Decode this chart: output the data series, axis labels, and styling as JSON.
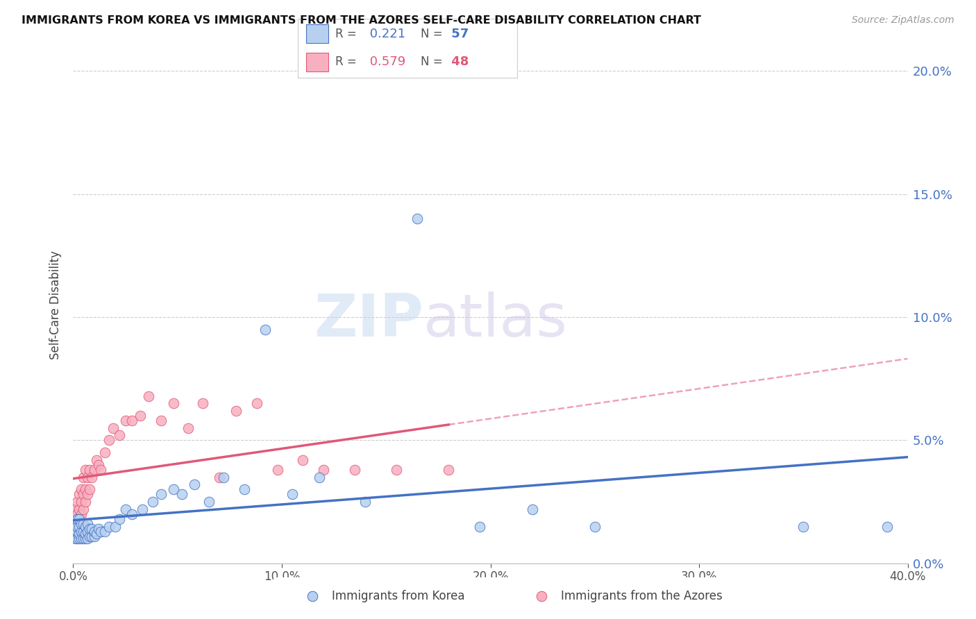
{
  "title": "IMMIGRANTS FROM KOREA VS IMMIGRANTS FROM THE AZORES SELF-CARE DISABILITY CORRELATION CHART",
  "source": "Source: ZipAtlas.com",
  "ylabel": "Self-Care Disability",
  "xlim": [
    0.0,
    0.4
  ],
  "ylim": [
    0.0,
    0.21
  ],
  "yticks": [
    0.0,
    0.05,
    0.1,
    0.15,
    0.2
  ],
  "xticks": [
    0.0,
    0.1,
    0.2,
    0.3,
    0.4
  ],
  "korea_R": 0.221,
  "korea_N": 57,
  "azores_R": 0.579,
  "azores_N": 48,
  "korea_color": "#b8d0f0",
  "azores_color": "#f8b0c0",
  "korea_edge_color": "#4472c4",
  "azores_edge_color": "#e05878",
  "korea_line_color": "#4472c4",
  "azores_line_color": "#e05878",
  "korea_x": [
    0.001,
    0.001,
    0.001,
    0.002,
    0.002,
    0.002,
    0.002,
    0.003,
    0.003,
    0.003,
    0.003,
    0.004,
    0.004,
    0.004,
    0.005,
    0.005,
    0.005,
    0.006,
    0.006,
    0.006,
    0.007,
    0.007,
    0.007,
    0.008,
    0.008,
    0.009,
    0.009,
    0.01,
    0.01,
    0.011,
    0.012,
    0.013,
    0.015,
    0.017,
    0.02,
    0.022,
    0.025,
    0.028,
    0.033,
    0.038,
    0.042,
    0.048,
    0.052,
    0.058,
    0.065,
    0.072,
    0.082,
    0.092,
    0.105,
    0.118,
    0.14,
    0.165,
    0.195,
    0.22,
    0.25,
    0.35,
    0.39
  ],
  "korea_y": [
    0.01,
    0.012,
    0.015,
    0.01,
    0.013,
    0.015,
    0.018,
    0.01,
    0.012,
    0.015,
    0.018,
    0.01,
    0.013,
    0.016,
    0.01,
    0.013,
    0.016,
    0.01,
    0.012,
    0.015,
    0.01,
    0.013,
    0.016,
    0.011,
    0.014,
    0.011,
    0.014,
    0.011,
    0.013,
    0.012,
    0.014,
    0.013,
    0.013,
    0.015,
    0.015,
    0.018,
    0.022,
    0.02,
    0.022,
    0.025,
    0.028,
    0.03,
    0.028,
    0.032,
    0.025,
    0.035,
    0.03,
    0.095,
    0.028,
    0.035,
    0.025,
    0.14,
    0.015,
    0.022,
    0.015,
    0.015,
    0.015
  ],
  "azores_x": [
    0.001,
    0.001,
    0.001,
    0.002,
    0.002,
    0.002,
    0.003,
    0.003,
    0.003,
    0.004,
    0.004,
    0.004,
    0.005,
    0.005,
    0.005,
    0.006,
    0.006,
    0.006,
    0.007,
    0.007,
    0.008,
    0.008,
    0.009,
    0.01,
    0.011,
    0.012,
    0.013,
    0.015,
    0.017,
    0.019,
    0.022,
    0.025,
    0.028,
    0.032,
    0.036,
    0.042,
    0.048,
    0.055,
    0.062,
    0.07,
    0.078,
    0.088,
    0.098,
    0.11,
    0.12,
    0.135,
    0.155,
    0.18
  ],
  "azores_y": [
    0.015,
    0.018,
    0.022,
    0.016,
    0.02,
    0.025,
    0.018,
    0.022,
    0.028,
    0.02,
    0.025,
    0.03,
    0.022,
    0.028,
    0.035,
    0.025,
    0.03,
    0.038,
    0.028,
    0.035,
    0.03,
    0.038,
    0.035,
    0.038,
    0.042,
    0.04,
    0.038,
    0.045,
    0.05,
    0.055,
    0.052,
    0.058,
    0.058,
    0.06,
    0.068,
    0.058,
    0.065,
    0.055,
    0.065,
    0.035,
    0.062,
    0.065,
    0.038,
    0.042,
    0.038,
    0.038,
    0.038,
    0.038
  ],
  "watermark_zip": "ZIP",
  "watermark_atlas": "atlas",
  "background_color": "#ffffff",
  "grid_color": "#cccccc"
}
